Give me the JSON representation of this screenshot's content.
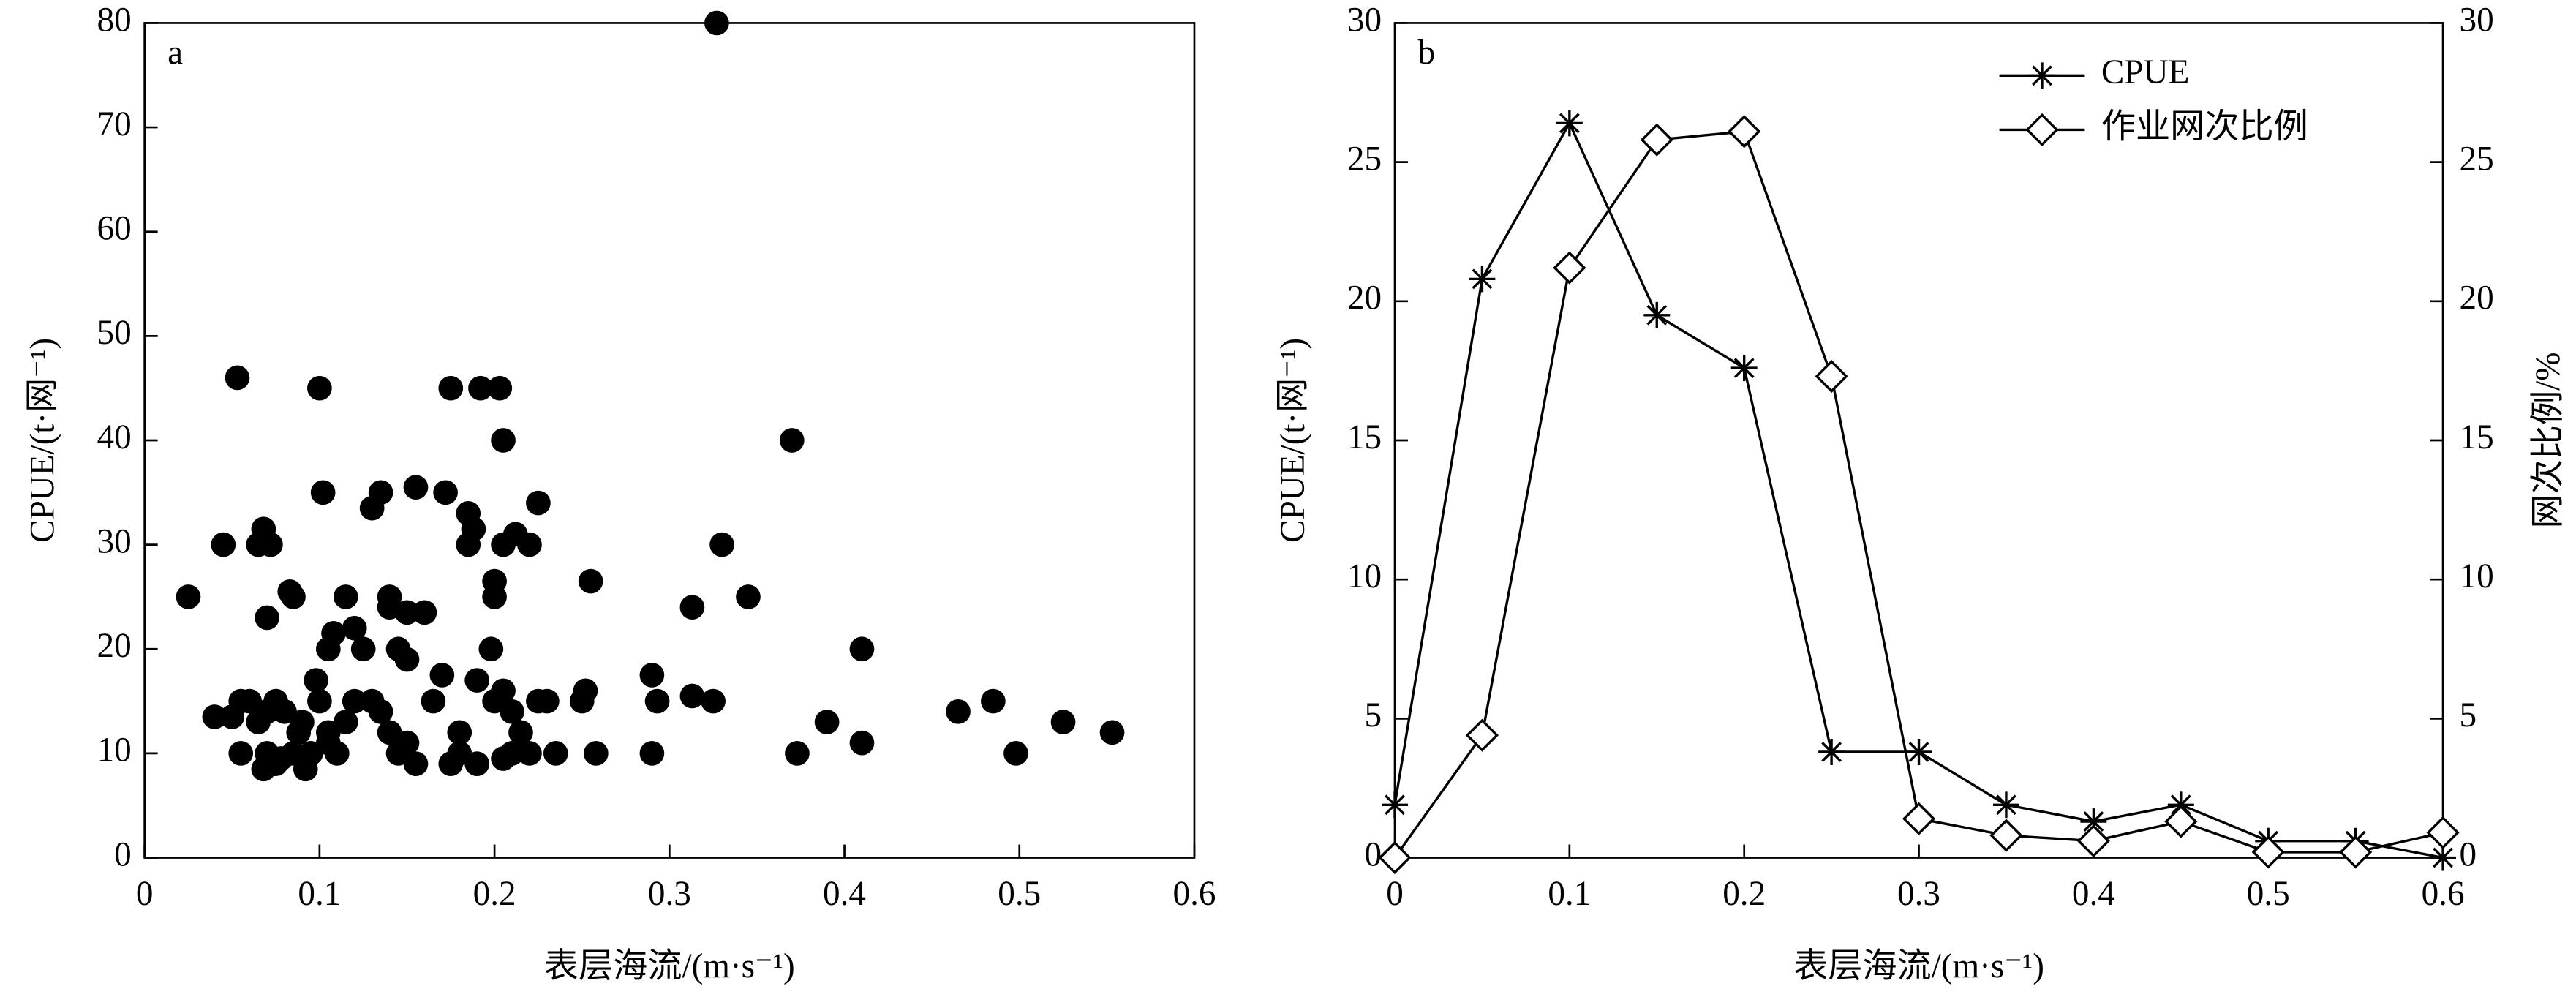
{
  "chart_data": [
    {
      "type": "scatter",
      "panel_label": "a",
      "xlabel": "表层海流/(m·s⁻¹)",
      "ylabel": "CPUE/(t·网⁻¹)",
      "color": "#000000",
      "xlim": [
        0,
        0.6
      ],
      "xticks": [
        0,
        0.1,
        0.2,
        0.3,
        0.4,
        0.5,
        0.6
      ],
      "ylim": [
        0,
        80
      ],
      "yticks": [
        0,
        10,
        20,
        30,
        40,
        50,
        60,
        70,
        80
      ],
      "x": [
        0.025,
        0.045,
        0.053,
        0.05,
        0.04,
        0.055,
        0.06,
        0.055,
        0.065,
        0.068,
        0.072,
        0.07,
        0.083,
        0.085,
        0.065,
        0.07,
        0.075,
        0.08,
        0.07,
        0.075,
        0.068,
        0.078,
        0.085,
        0.088,
        0.09,
        0.092,
        0.095,
        0.1,
        0.102,
        0.098,
        0.1,
        0.105,
        0.108,
        0.105,
        0.11,
        0.105,
        0.115,
        0.12,
        0.12,
        0.115,
        0.125,
        0.13,
        0.135,
        0.14,
        0.14,
        0.145,
        0.15,
        0.15,
        0.16,
        0.155,
        0.13,
        0.135,
        0.14,
        0.145,
        0.15,
        0.155,
        0.165,
        0.17,
        0.172,
        0.175,
        0.18,
        0.175,
        0.18,
        0.185,
        0.188,
        0.185,
        0.19,
        0.192,
        0.198,
        0.2,
        0.2,
        0.203,
        0.205,
        0.205,
        0.212,
        0.22,
        0.225,
        0.19,
        0.2,
        0.205,
        0.21,
        0.215,
        0.22,
        0.225,
        0.23,
        0.235,
        0.205,
        0.21,
        0.25,
        0.252,
        0.255,
        0.258,
        0.29,
        0.29,
        0.293,
        0.313,
        0.313,
        0.325,
        0.327,
        0.33,
        0.345,
        0.37,
        0.373,
        0.39,
        0.41,
        0.41,
        0.465,
        0.485,
        0.498,
        0.525,
        0.553
      ],
      "values": [
        25,
        30,
        46,
        13.5,
        13.5,
        15,
        15,
        10,
        30,
        31.5,
        30,
        23,
        25.5,
        25,
        13,
        14,
        15,
        14,
        10,
        9,
        8.5,
        9.5,
        10,
        12,
        13,
        8.5,
        10,
        45,
        35,
        17,
        15,
        20,
        21.5,
        12,
        10,
        11,
        25,
        22,
        15,
        13,
        20,
        33.5,
        35,
        25,
        24,
        20,
        23.5,
        19,
        23.5,
        35.5,
        15,
        14,
        12,
        10,
        11,
        9,
        15,
        17.5,
        35,
        45,
        12,
        9,
        10,
        33,
        31.5,
        30,
        9,
        45,
        20,
        25,
        26.5,
        45,
        40,
        30,
        31,
        30,
        34,
        17,
        15,
        16,
        14,
        12,
        10,
        15,
        15,
        10,
        9.5,
        10,
        15,
        16,
        26.5,
        10,
        17.5,
        10,
        15,
        24,
        15.5,
        15,
        80,
        30,
        25,
        40,
        10,
        13,
        20,
        11,
        14,
        15,
        10,
        13,
        12
      ]
    },
    {
      "type": "line",
      "panel_label": "b",
      "xlabel": "表层海流/(m·s⁻¹)",
      "ylabel": "CPUE/(t·网⁻¹)",
      "y2label": "网次比例/%",
      "legend": "upper right",
      "xlim": [
        0,
        0.6
      ],
      "xticks": [
        0,
        0.1,
        0.2,
        0.3,
        0.4,
        0.5,
        0.6
      ],
      "ylim": [
        0,
        30
      ],
      "yticks": [
        0,
        5,
        10,
        15,
        20,
        25,
        30
      ],
      "y2lim": [
        0,
        30
      ],
      "y2ticks": [
        0,
        5,
        10,
        15,
        20,
        25,
        30
      ],
      "x": [
        0,
        0.05,
        0.1,
        0.15,
        0.2,
        0.25,
        0.3,
        0.35,
        0.4,
        0.45,
        0.5,
        0.55,
        0.6
      ],
      "series": [
        {
          "name": "CPUE",
          "color": "#000000",
          "marker": "asterisk",
          "values": [
            1.9,
            20.8,
            26.4,
            19.5,
            17.6,
            3.8,
            3.8,
            1.9,
            1.3,
            1.9,
            0.6,
            0.6,
            0
          ]
        },
        {
          "name": "作业网次比例",
          "color": "#000000",
          "marker": "diamond",
          "axis": "y2",
          "values": [
            0,
            4.4,
            21.2,
            25.8,
            26.1,
            17.3,
            1.4,
            0.8,
            0.6,
            1.3,
            0.2,
            0.2,
            0.9
          ]
        }
      ]
    }
  ]
}
